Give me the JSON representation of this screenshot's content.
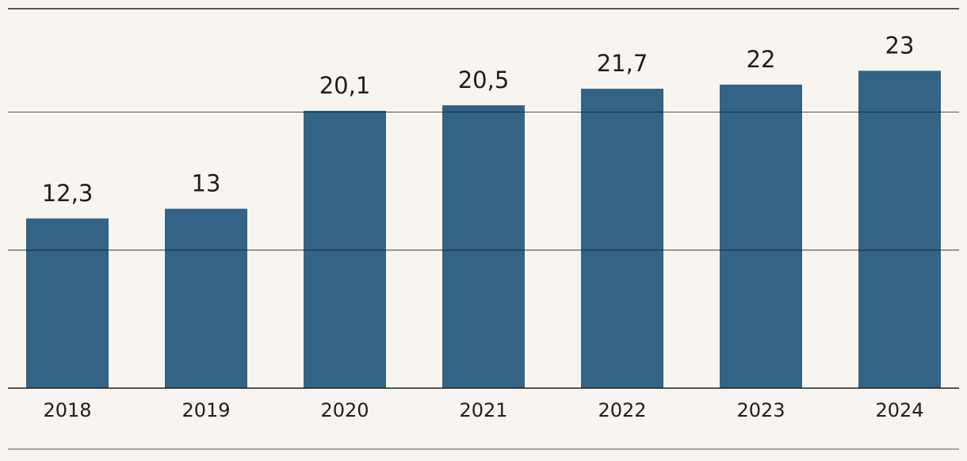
{
  "chart_data": {
    "type": "bar",
    "categories": [
      "2018",
      "2019",
      "2020",
      "2021",
      "2022",
      "2023",
      "2024"
    ],
    "values": [
      12.3,
      13,
      20.1,
      20.5,
      21.7,
      22,
      23
    ],
    "value_labels": [
      "12,3",
      "13",
      "20,1",
      "20,5",
      "21,7",
      "22",
      "23"
    ],
    "color": "#336385",
    "ylim": [
      0,
      27.5
    ],
    "yticks": [
      0,
      10,
      20
    ],
    "grid": true
  }
}
